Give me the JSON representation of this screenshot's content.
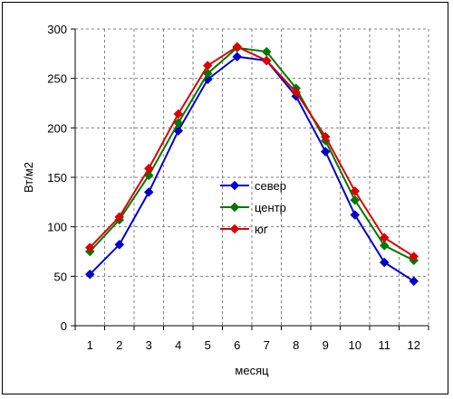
{
  "chart_data": {
    "type": "line",
    "title": "",
    "xlabel": "месяц",
    "ylabel": "Вт/м2",
    "ylim": [
      0,
      300
    ],
    "y_ticks": [
      0,
      50,
      100,
      150,
      200,
      250,
      300
    ],
    "categories": [
      "1",
      "2",
      "3",
      "4",
      "5",
      "6",
      "7",
      "8",
      "9",
      "10",
      "11",
      "12"
    ],
    "grid": true,
    "legend_position": "center",
    "series": [
      {
        "name": "север",
        "color": "#0000cc",
        "marker": "diamond",
        "values": [
          52,
          82,
          135,
          197,
          249,
          272,
          268,
          232,
          176,
          112,
          64,
          45
        ]
      },
      {
        "name": "центр",
        "color": "#007700",
        "marker": "diamond",
        "values": [
          75,
          107,
          152,
          205,
          255,
          281,
          277,
          240,
          187,
          127,
          81,
          66
        ]
      },
      {
        "name": "юг",
        "color": "#dd0000",
        "marker": "diamond",
        "values": [
          79,
          110,
          159,
          214,
          263,
          282,
          268,
          236,
          191,
          136,
          89,
          70
        ]
      }
    ]
  }
}
